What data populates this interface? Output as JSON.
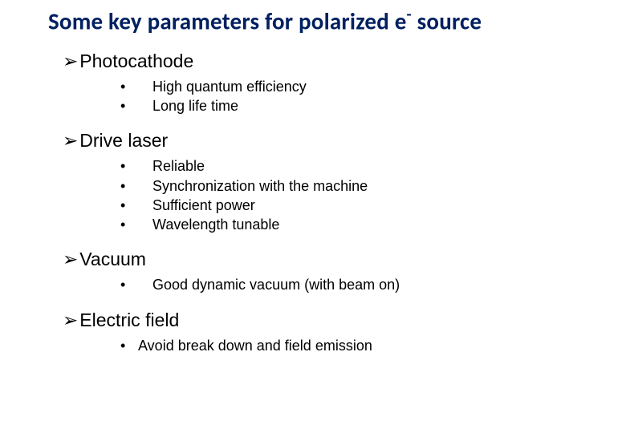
{
  "title_pre": "Some key parameters for polarized e",
  "title_sup": "-",
  "title_post": " source",
  "title_color": "#002060",
  "title_fontsize": 29,
  "section_fontsize": 23,
  "item_fontsize": 18,
  "background_color": "#ffffff",
  "arrow_glyph": "➢",
  "bullet_glyph": "•",
  "sections": [
    {
      "head": "Photocathode",
      "items": [
        "High quantum efficiency",
        "Long life time"
      ]
    },
    {
      "head": "Drive laser",
      "items": [
        "Reliable",
        "Synchronization with the machine",
        "Sufficient power",
        "Wavelength tunable"
      ]
    },
    {
      "head": "Vacuum",
      "items": [
        "Good dynamic vacuum (with beam on)"
      ]
    },
    {
      "head": "Electric field",
      "tight": true,
      "items": [
        "Avoid break down and field emission"
      ]
    }
  ]
}
